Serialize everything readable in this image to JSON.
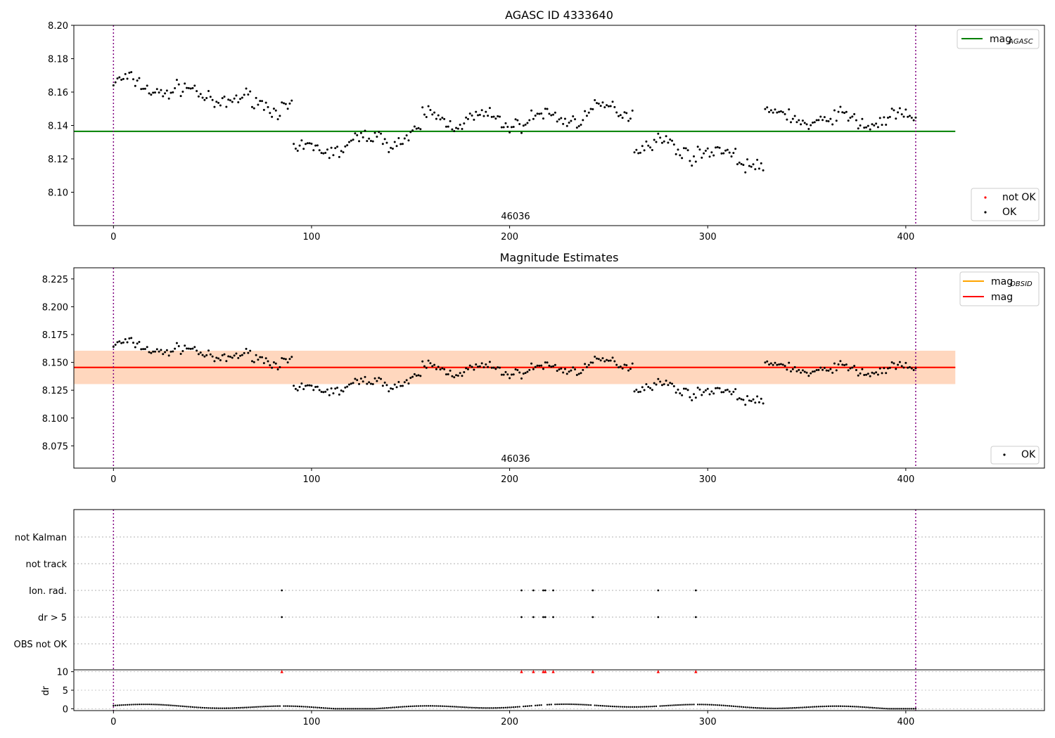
{
  "chart_data": [
    {
      "type": "scatter",
      "title": "AGASC ID 4333640",
      "xlim": [
        -20,
        470
      ],
      "ylim": [
        8.08,
        8.2
      ],
      "xticks": [
        "0",
        "100",
        "200",
        "300",
        "400"
      ],
      "yticks": [
        "8.10",
        "8.12",
        "8.14",
        "8.16",
        "8.18",
        "8.20"
      ],
      "obsid_label": "46036",
      "obsid_boundaries_x": [
        0,
        405
      ],
      "reference_line": {
        "name": "mag",
        "subscript": "AGASC",
        "y": 8.1365,
        "x_range": [
          -20,
          425
        ],
        "color": "#008000"
      },
      "series": [
        {
          "name": "not OK",
          "color": "#ff0000",
          "n": 0
        },
        {
          "name": "OK",
          "color": "#000000",
          "n": 406,
          "x_range": [
            0,
            405
          ],
          "segments": [
            {
              "x": [
                0,
                90
              ],
              "y_start": 8.163,
              "y_end": 8.154
            },
            {
              "x": [
                90,
                155
              ],
              "y_start": 8.124,
              "y_end": 8.132
            },
            {
              "x": [
                155,
                262
              ],
              "y_start": 8.143,
              "y_end": 8.148
            },
            {
              "x": [
                262,
                328
              ],
              "y_start": 8.127,
              "y_end": 8.12
            },
            {
              "x": [
                328,
                405
              ],
              "y_start": 8.148,
              "y_end": 8.14
            }
          ]
        }
      ]
    },
    {
      "type": "scatter",
      "title": "Magnitude Estimates",
      "xlim": [
        -20,
        470
      ],
      "ylim": [
        8.055,
        8.235
      ],
      "xticks": [
        "0",
        "100",
        "200",
        "300",
        "400"
      ],
      "yticks": [
        "8.075",
        "8.100",
        "8.125",
        "8.150",
        "8.175",
        "8.200",
        "8.225"
      ],
      "obsid_label": "46036",
      "reference_lines": [
        {
          "name": "mag",
          "subscript": "OBSID",
          "y": 8.1455,
          "color": "#ffa500",
          "band": [
            8.1305,
            8.1605
          ],
          "x_range": [
            -20,
            425
          ]
        },
        {
          "name": "mag",
          "y": 8.1455,
          "color": "#ff0000",
          "band": [
            8.1305,
            8.1605
          ],
          "x_range": [
            -20,
            425
          ]
        }
      ],
      "series": [
        {
          "name": "OK",
          "color": "#000000"
        }
      ]
    },
    {
      "type": "scatter",
      "title": "",
      "xlim": [
        -20,
        470
      ],
      "xticks": [
        "0",
        "100",
        "200",
        "300",
        "400"
      ],
      "flag_categories": [
        "OBS not OK",
        "dr > 5",
        "Ion. rad.",
        "not track",
        "not Kalman"
      ],
      "flagged_x": [
        85,
        206,
        212,
        217,
        218,
        222,
        242,
        275,
        294
      ],
      "flag_rows_marked": [
        "dr > 5",
        "Ion. rad."
      ],
      "dr_panel": {
        "ylabel": "dr",
        "yticks": [
          "0",
          "5",
          "10"
        ],
        "ylim": [
          -0.5,
          10.5
        ],
        "clipped_value": 10,
        "baseline_range": [
          0,
          1.6
        ]
      }
    }
  ],
  "legend": {
    "top": [
      {
        "label": "mag",
        "subscript": "AGASC"
      }
    ],
    "top_points": [
      {
        "label": "not OK"
      },
      {
        "label": "OK"
      }
    ],
    "middle_lines": [
      {
        "label": "mag",
        "subscript": "OBSID"
      },
      {
        "label": "mag"
      }
    ],
    "middle_points": [
      {
        "label": "OK"
      }
    ]
  }
}
